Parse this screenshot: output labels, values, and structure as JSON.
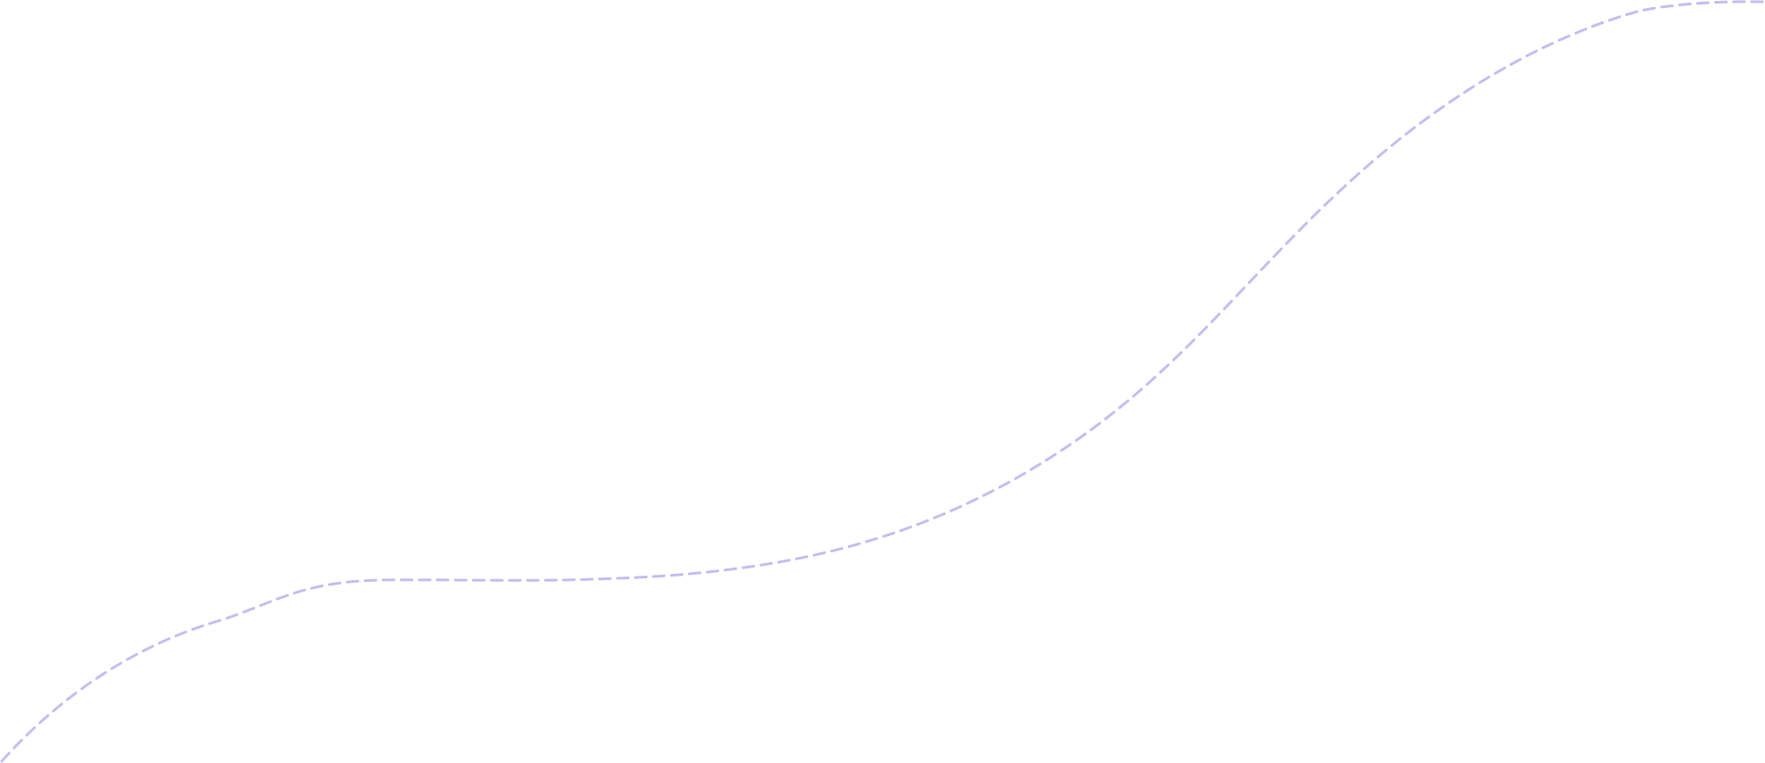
{
  "background": {
    "color": "#ffffff"
  },
  "decoration": {
    "kind": "dashed-wave-curve",
    "stroke_color": "#c3bff0",
    "style": "dashed"
  }
}
